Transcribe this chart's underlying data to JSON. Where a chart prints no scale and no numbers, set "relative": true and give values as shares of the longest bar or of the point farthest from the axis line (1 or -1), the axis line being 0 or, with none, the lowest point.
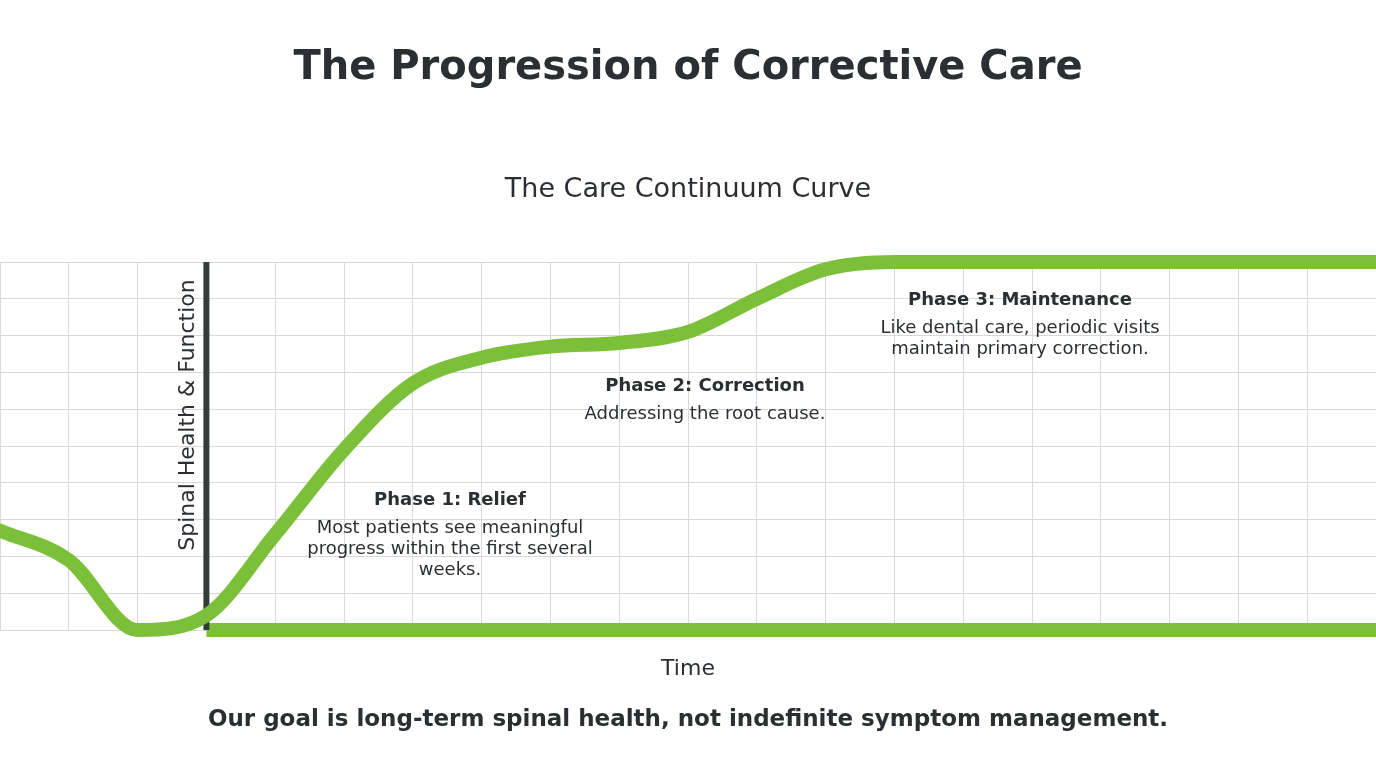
{
  "chart_data": {
    "type": "line",
    "title": "The Progression of Corrective Care",
    "subtitle": "The Care Continuum Curve",
    "xlabel": "Time",
    "ylabel": "Spinal Health & Function",
    "relative": true,
    "grid": true,
    "legend": false,
    "marker": "none",
    "line_style": "solid",
    "categories": [
      null,
      null,
      null,
      null,
      null,
      null,
      null,
      null,
      null,
      null,
      null,
      null,
      null,
      null,
      null,
      null,
      null,
      null,
      null,
      null,
      null
    ],
    "series": [
      {
        "color": "#7cc03a",
        "values": [
          0.27,
          0.19,
          0.0,
          0.04,
          0.26,
          0.49,
          0.67,
          0.74,
          0.77,
          0.78,
          0.81,
          0.9,
          0.98,
          1,
          1,
          1,
          1,
          1,
          1,
          1,
          1
        ]
      }
    ],
    "annotations": [
      "Phase 1: Relief",
      "Most patients see meaningful progress within the first several weeks.",
      "Phase 2: Correction",
      "Addressing the root cause.",
      "Phase 3: Maintenance",
      "Like dental care, periodic visits maintain primary correction.",
      "Our goal is long-term spinal health, not indefinite symptom management."
    ]
  }
}
